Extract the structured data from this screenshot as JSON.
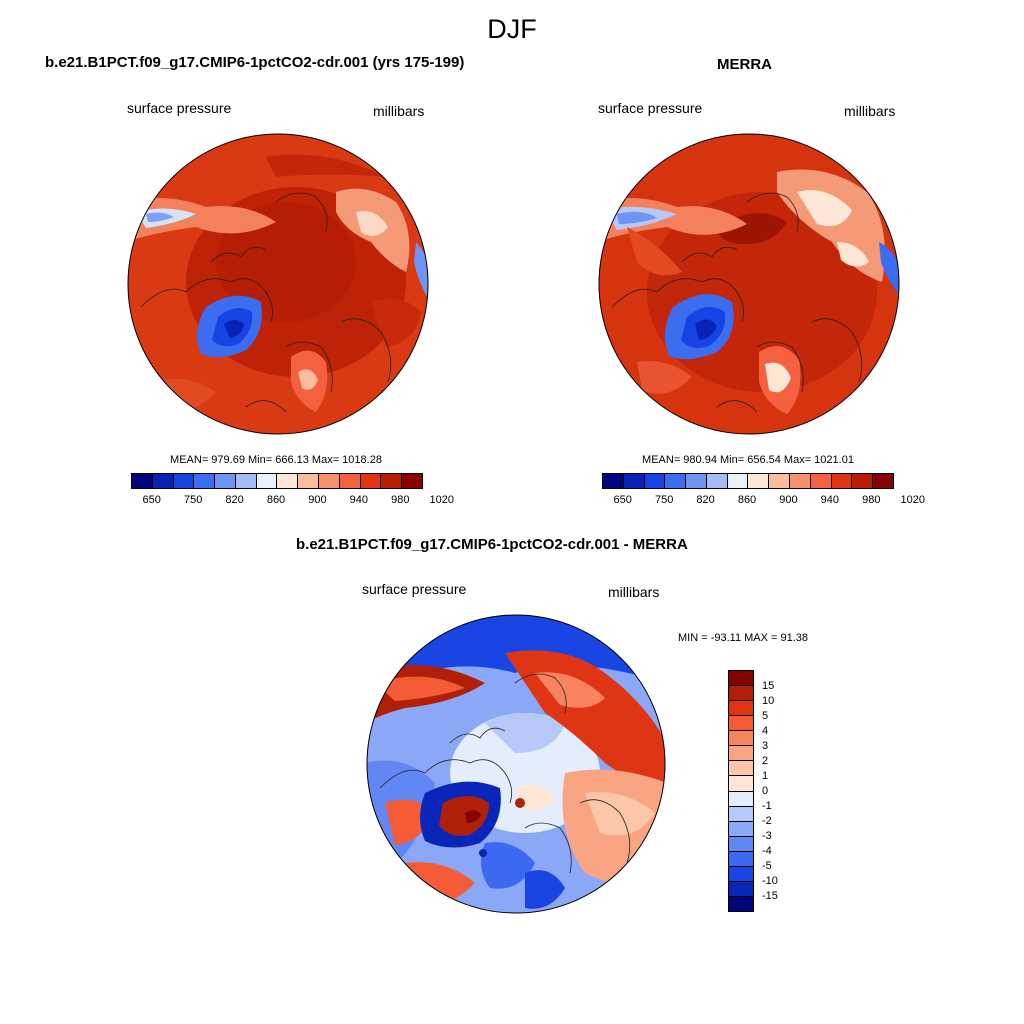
{
  "title": "DJF",
  "colors": {
    "abs_palette": [
      "#01057d",
      "#0922b6",
      "#1544e3",
      "#3c6cf0",
      "#6e95f4",
      "#a5bcf6",
      "#e8f0fb",
      "#fde6d6",
      "#fbbd9c",
      "#f88f6b",
      "#f3613f",
      "#df3515",
      "#b81e05",
      "#850303"
    ],
    "diff_palette": [
      "#01057d",
      "#0a26b8",
      "#1a45e5",
      "#3d68f2",
      "#6187f4",
      "#8aa8f6",
      "#b5c8f8",
      "#e4edfb",
      "#fde6d6",
      "#fcc7a8",
      "#f9a583",
      "#f7845f",
      "#f45b36",
      "#df3515",
      "#b01f07",
      "#850303"
    ]
  },
  "panels": {
    "model": {
      "title": "b.e21.B1PCT.f09_g17.CMIP6-1pctCO2-cdr.001 (yrs 175-199)",
      "left_label": "surface pressure",
      "right_label": "millibars",
      "stats": "MEAN= 979.69  Min= 666.13  Max= 1018.28"
    },
    "obs": {
      "title": "MERRA",
      "left_label": "surface pressure",
      "right_label": "millibars",
      "stats": "MEAN= 980.94  Min= 656.54  Max= 1021.01"
    },
    "diff": {
      "title": "b.e21.B1PCT.f09_g17.CMIP6-1pctCO2-cdr.001 - MERRA",
      "left_label": "surface pressure",
      "right_label": "millibars",
      "stats": "MIN = -93.11 MAX =  91.38"
    }
  },
  "abs_colorbar": {
    "labels": [
      "650",
      "750",
      "820",
      "860",
      "900",
      "940",
      "980",
      "1020"
    ]
  },
  "diff_colorbar": {
    "labels": [
      "15",
      "10",
      "5",
      "4",
      "3",
      "2",
      "1",
      "0",
      "-1",
      "-2",
      "-3",
      "-4",
      "-5",
      "-10",
      "-15"
    ]
  }
}
